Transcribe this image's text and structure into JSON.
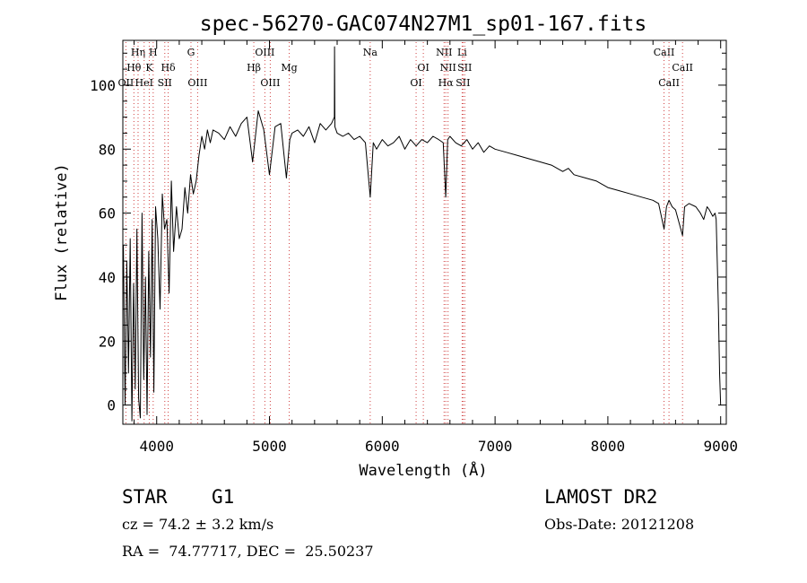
{
  "chart_data": {
    "type": "line",
    "title": "spec-56270-GAC074N27M1_sp01-167.fits",
    "xlabel": "Wavelength (Å)",
    "ylabel": "Flux (relative)",
    "xlim": [
      3700,
      9050
    ],
    "ylim": [
      -6,
      114
    ],
    "xticks": [
      4000,
      5000,
      6000,
      7000,
      8000,
      9000
    ],
    "yticks": [
      0,
      20,
      40,
      60,
      80,
      100
    ],
    "grid": false,
    "line_marks": [
      {
        "label": "OII",
        "x": 3727,
        "row": 3
      },
      {
        "label": "Hθ",
        "x": 3798,
        "row": 2
      },
      {
        "label": "Hη",
        "x": 3835,
        "row": 1
      },
      {
        "label": "HeI",
        "x": 3889,
        "row": 3
      },
      {
        "label": "K",
        "x": 3934,
        "row": 2
      },
      {
        "label": "H",
        "x": 3969,
        "row": 1
      },
      {
        "label": "SII",
        "x": 4072,
        "row": 3
      },
      {
        "label": "Hδ",
        "x": 4102,
        "row": 2
      },
      {
        "label": "G",
        "x": 4304,
        "row": 1
      },
      {
        "label": "OIII",
        "x": 4363,
        "row": 3
      },
      {
        "label": "Hβ",
        "x": 4861,
        "row": 2
      },
      {
        "label": "OIII",
        "x": 4959,
        "row": 1
      },
      {
        "label": "OIII",
        "x": 5007,
        "row": 3
      },
      {
        "label": "Mg",
        "x": 5175,
        "row": 2
      },
      {
        "label": "Na",
        "x": 5893,
        "row": 1
      },
      {
        "label": "OI",
        "x": 6300,
        "row": 3
      },
      {
        "label": "OI",
        "x": 6364,
        "row": 2
      },
      {
        "label": "NII",
        "x": 6548,
        "row": 1
      },
      {
        "label": "Hα",
        "x": 6563,
        "row": 3
      },
      {
        "label": "NII",
        "x": 6583,
        "row": 2
      },
      {
        "label": "Li",
        "x": 6708,
        "row": 1
      },
      {
        "label": "SII",
        "x": 6716,
        "row": 3
      },
      {
        "label": "SII",
        "x": 6731,
        "row": 2
      },
      {
        "label": "CaII",
        "x": 8498,
        "row": 1
      },
      {
        "label": "CaII",
        "x": 8542,
        "row": 3
      },
      {
        "label": "CaII",
        "x": 8662,
        "row": 2
      }
    ],
    "series": [
      {
        "color": "#000000",
        "x": [
          3705,
          3720,
          3735,
          3750,
          3765,
          3780,
          3795,
          3810,
          3825,
          3840,
          3855,
          3870,
          3885,
          3900,
          3915,
          3930,
          3945,
          3960,
          3975,
          3990,
          4010,
          4030,
          4050,
          4070,
          4090,
          4110,
          4130,
          4150,
          4175,
          4200,
          4225,
          4250,
          4275,
          4300,
          4325,
          4350,
          4375,
          4400,
          4425,
          4450,
          4475,
          4500,
          4550,
          4600,
          4650,
          4700,
          4750,
          4800,
          4850,
          4900,
          4950,
          5000,
          5050,
          5100,
          5150,
          5180,
          5200,
          5250,
          5300,
          5350,
          5400,
          5450,
          5500,
          5550,
          5575,
          5577,
          5580,
          5600,
          5650,
          5700,
          5750,
          5800,
          5850,
          5893,
          5920,
          5950,
          6000,
          6050,
          6100,
          6150,
          6200,
          6250,
          6300,
          6350,
          6400,
          6450,
          6500,
          6540,
          6563,
          6580,
          6600,
          6650,
          6700,
          6750,
          6800,
          6850,
          6900,
          6950,
          7000,
          7100,
          7200,
          7300,
          7400,
          7500,
          7600,
          7650,
          7700,
          7800,
          7900,
          8000,
          8100,
          8200,
          8300,
          8400,
          8450,
          8498,
          8520,
          8542,
          8570,
          8600,
          8662,
          8680,
          8720,
          8780,
          8820,
          8850,
          8880,
          8900,
          8930,
          8950,
          8960,
          8970,
          8980,
          8990,
          9000
        ],
        "values": [
          50,
          0,
          45,
          10,
          52,
          -5,
          38,
          5,
          55,
          2,
          -4,
          60,
          8,
          40,
          -3,
          48,
          15,
          58,
          4,
          62,
          52,
          30,
          66,
          55,
          58,
          35,
          70,
          48,
          62,
          52,
          55,
          68,
          60,
          72,
          66,
          70,
          78,
          84,
          80,
          86,
          82,
          86,
          85,
          83,
          87,
          84,
          88,
          90,
          76,
          92,
          86,
          72,
          87,
          88,
          71,
          83,
          85,
          86,
          84,
          87,
          82,
          88,
          86,
          88,
          90,
          112,
          87,
          85,
          84,
          85,
          83,
          84,
          82,
          65,
          82,
          80,
          83,
          81,
          82,
          84,
          80,
          83,
          81,
          83,
          82,
          84,
          83,
          82,
          65,
          83,
          84,
          82,
          81,
          83,
          80,
          82,
          79,
          81,
          80,
          79,
          78,
          77,
          76,
          75,
          73,
          74,
          72,
          71,
          70,
          68,
          67,
          66,
          65,
          64,
          63,
          55,
          62,
          64,
          62,
          61,
          53,
          62,
          63,
          62,
          60,
          58,
          62,
          61,
          59,
          60,
          58,
          45,
          30,
          10,
          0
        ]
      }
    ]
  },
  "footer": {
    "object_class": "STAR",
    "subclass": "G1",
    "survey": "LAMOST DR2",
    "cz": "cz = 74.2 ± 3.2 km/s",
    "obs_date": "Obs-Date: 20121208",
    "coords": "RA =  74.77717, DEC =  25.50237"
  }
}
